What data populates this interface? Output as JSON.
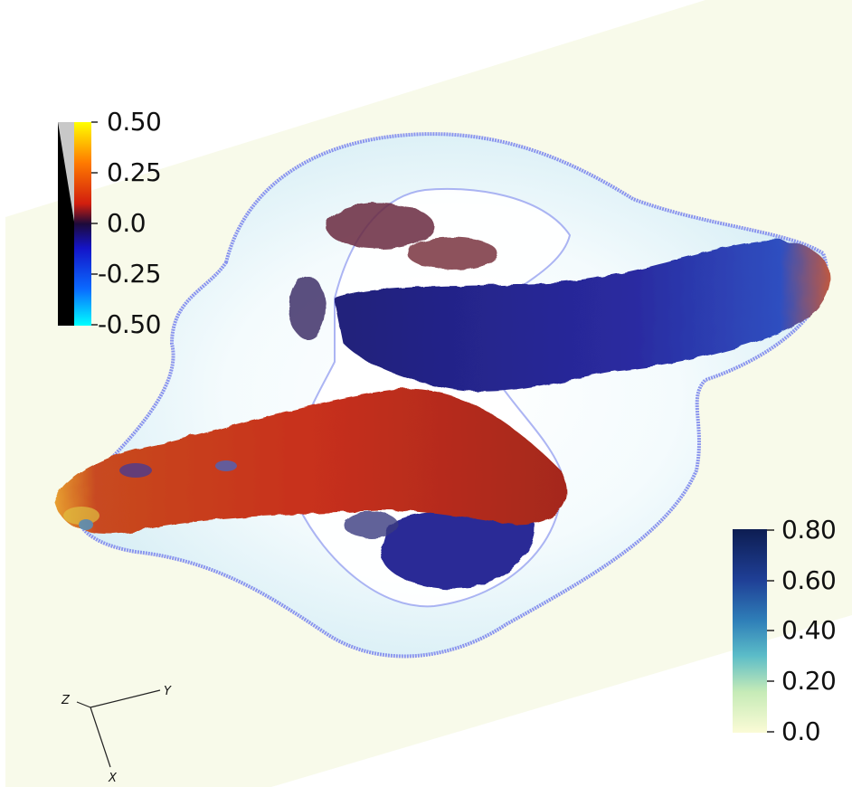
{
  "colorbar_top_left": {
    "ticks": [
      "0.50",
      "0.25",
      "0.0",
      "-0.25",
      "-0.50"
    ],
    "colors": [
      "#ffff00",
      "#ff7a00",
      "#d21e0e",
      "#1d0a3a",
      "#1414c8",
      "#0a6aff",
      "#00ffff"
    ]
  },
  "colorbar_bottom_right": {
    "ticks": [
      "0.80",
      "0.60",
      "0.40",
      "0.20",
      "0.0"
    ],
    "colors": [
      "#0d1d52",
      "#1f3f96",
      "#2f7fb8",
      "#5bbcc8",
      "#c6ebb7",
      "#fbfbd6"
    ]
  },
  "orientation_axes": {
    "labels": [
      "Z",
      "Y",
      "X"
    ]
  },
  "scene": {
    "background_slab_color": "#f8faea",
    "contour_color": "#7f8ff0",
    "red_lobe_color": "#c8301a",
    "blue_lobe_color": "#2a2a9a"
  }
}
